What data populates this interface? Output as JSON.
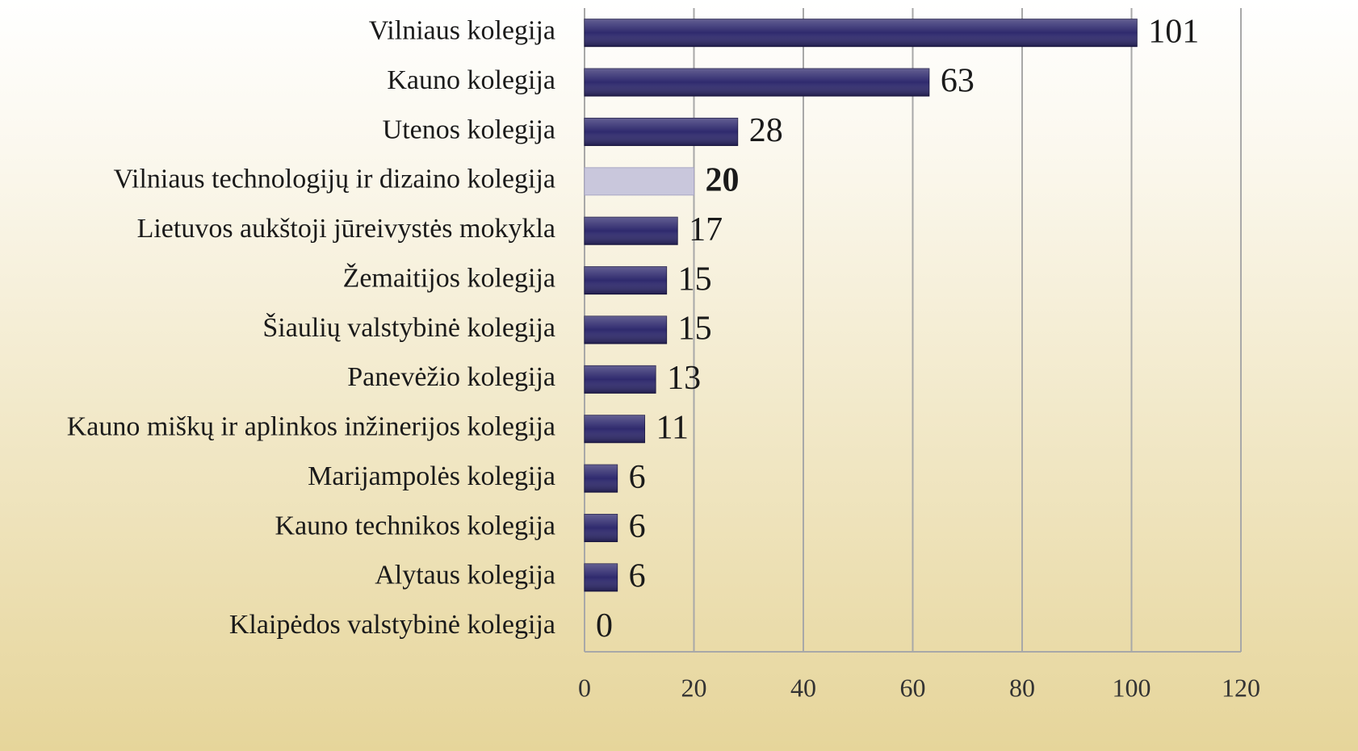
{
  "chart_data": {
    "type": "barh",
    "categories": [
      "Vilniaus kolegija",
      "Kauno kolegija",
      "Utenos kolegija",
      "Vilniaus technologijų ir dizaino kolegija",
      "Lietuvos aukštoji jūreivystės mokykla",
      "Žemaitijos kolegija",
      "Šiaulių valstybinė kolegija",
      "Panevėžio kolegija",
      "Kauno miškų ir aplinkos inžinerijos kolegija",
      "Marijampolės kolegija",
      "Kauno technikos kolegija",
      "Alytaus kolegija",
      "Klaipėdos valstybinė kolegija"
    ],
    "values": [
      101,
      63,
      28,
      20,
      17,
      15,
      15,
      13,
      11,
      6,
      6,
      6,
      0
    ],
    "colors": [
      "#2f2a6e",
      "#2f2a6e",
      "#2f2a6e",
      "#c9c7dc",
      "#2f2a6e",
      "#2f2a6e",
      "#2f2a6e",
      "#2f2a6e",
      "#2f2a6e",
      "#2f2a6e",
      "#2f2a6e",
      "#2f2a6e",
      "#2f2a6e"
    ],
    "xlim": [
      0,
      120
    ],
    "xticks": [
      0,
      20,
      40,
      60,
      80,
      100,
      120
    ],
    "grid": true
  }
}
